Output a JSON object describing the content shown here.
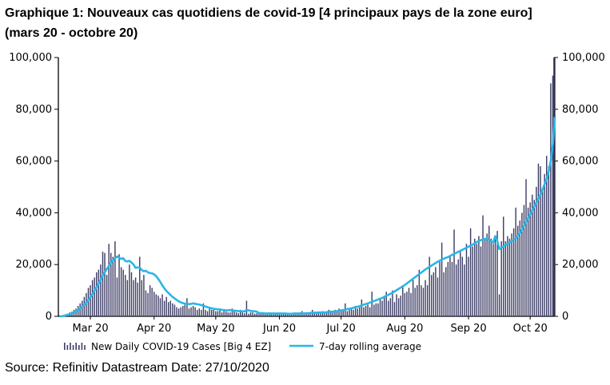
{
  "title_line1": "Graphique 1: Nouveaux cas quotidiens de covid-19 [4 principaux pays de la zone euro]",
  "title_line2": "(mars 20 - octobre 20)",
  "source": "Source: Refinitiv Datastream Date: 27/10/2020",
  "colors": {
    "bars": "#3d3d66",
    "line": "#29b6e8",
    "axis": "#000000"
  },
  "chart_data": {
    "type": "bar",
    "y_ticks": [
      "0",
      "20,000",
      "40,000",
      "60,000",
      "80,000",
      "100,000"
    ],
    "ylim": [
      0,
      100000
    ],
    "x_ticks": [
      {
        "label": "Mar 20",
        "day": 15
      },
      {
        "label": "Apr 20",
        "day": 46
      },
      {
        "label": "May 20",
        "day": 76
      },
      {
        "label": "Jun 20",
        "day": 107
      },
      {
        "label": "Jul 20",
        "day": 137
      },
      {
        "label": "Aug 20",
        "day": 168
      },
      {
        "label": "Sep 20",
        "day": 199
      },
      {
        "label": "Oct 20",
        "day": 229
      }
    ],
    "x_start_label": "2020-03-01",
    "series": [
      {
        "name": "New Daily COVID-19 Cases [Big 4 EZ]",
        "type": "bar",
        "values": [
          0,
          0,
          500,
          800,
          1000,
          1500,
          1800,
          2500,
          3000,
          4000,
          5000,
          6000,
          7500,
          9000,
          11000,
          12000,
          14000,
          15000,
          17000,
          18000,
          20000,
          25000,
          24500,
          16000,
          28000,
          24500,
          23000,
          29000,
          15000,
          24000,
          19000,
          18000,
          16000,
          14000,
          20000,
          17000,
          14000,
          15000,
          13000,
          23000,
          14000,
          16000,
          10000,
          9000,
          12000,
          11000,
          9500,
          8500,
          8000,
          7000,
          8500,
          6000,
          7500,
          5500,
          6000,
          5000,
          4500,
          3500,
          3000,
          3500,
          4000,
          4500,
          7000,
          3000,
          3500,
          4000,
          3500,
          2500,
          3000,
          2500,
          5000,
          2500,
          2000,
          3500,
          2500,
          2500,
          2000,
          2000,
          3000,
          1500,
          2000,
          1800,
          1500,
          1500,
          3000,
          2000,
          1500,
          1200,
          2500,
          1500,
          1200,
          6000,
          1000,
          1500,
          1500,
          1000,
          1200,
          1100,
          1000,
          1000,
          1200,
          1000,
          1500,
          1200,
          1000,
          1100,
          1000,
          900,
          1000,
          1000,
          900,
          1200,
          1000,
          1000,
          1100,
          1000,
          1200,
          1500,
          2000,
          1000,
          1500,
          1500,
          1200,
          2500,
          1000,
          1500,
          1200,
          1500,
          2000,
          1500,
          2000,
          2500,
          2000,
          1500,
          2500,
          2000,
          3000,
          2000,
          2500,
          5000,
          2000,
          2500,
          3000,
          2500,
          4000,
          3000,
          3500,
          6500,
          3500,
          4000,
          4500,
          3500,
          9500,
          4500,
          5000,
          5000,
          7000,
          6000,
          8000,
          9500,
          6000,
          7000,
          10000,
          5500,
          8500,
          7000,
          8000,
          12000,
          9000,
          9500,
          11000,
          9000,
          14000,
          11000,
          12000,
          18000,
          12000,
          11000,
          14000,
          12000,
          23000,
          16000,
          17000,
          19000,
          15000,
          21000,
          28500,
          17000,
          19000,
          21000,
          23000,
          21000,
          33500,
          20000,
          22000,
          25000,
          23000,
          20000,
          28000,
          23000,
          34000,
          27000,
          30000,
          28000,
          31000,
          27000,
          39000,
          30000,
          32000,
          35000,
          30000,
          28000,
          31000,
          33000,
          8500,
          29000,
          38500,
          29000,
          31000,
          30000,
          32000,
          34000,
          42000,
          35000,
          37000,
          40000,
          43000,
          53000,
          42000,
          44000,
          47000,
          45000,
          50000,
          59000,
          58000,
          49000,
          55000,
          62000,
          58000,
          90000,
          93000,
          100000
        ]
      },
      {
        "name": "7-day rolling average",
        "type": "line",
        "values": [
          0,
          0,
          200,
          400,
          600,
          800,
          1100,
          1500,
          1900,
          2400,
          3000,
          3700,
          4500,
          5300,
          6300,
          7400,
          8600,
          9900,
          11200,
          12600,
          14000,
          15600,
          17000,
          18300,
          19500,
          20600,
          21400,
          22400,
          23100,
          22600,
          22200,
          22400,
          21400,
          21200,
          21400,
          20800,
          20000,
          18700,
          18900,
          18800,
          17900,
          17400,
          17600,
          17000,
          16700,
          16600,
          16200,
          15500,
          14500,
          13300,
          12000,
          10800,
          9800,
          9000,
          8200,
          7500,
          6900,
          6300,
          5800,
          5400,
          5100,
          4900,
          4900,
          4700,
          4800,
          5000,
          4800,
          4700,
          4500,
          4300,
          4100,
          3800,
          3500,
          3300,
          3100,
          2900,
          2800,
          2700,
          2600,
          2500,
          2400,
          2300,
          2300,
          2400,
          2300,
          2200,
          2100,
          2000,
          2000,
          1900,
          1900,
          2400,
          2300,
          2100,
          2000,
          1900,
          1800,
          1300,
          1200,
          1200,
          1100,
          1100,
          1100,
          1100,
          1100,
          1100,
          1100,
          1100,
          1100,
          1100,
          1100,
          1000,
          1000,
          1000,
          1100,
          1100,
          1100,
          1100,
          1100,
          1100,
          1200,
          1200,
          1300,
          1400,
          1400,
          1400,
          1500,
          1500,
          1500,
          1500,
          1600,
          1700,
          1800,
          1800,
          1900,
          2000,
          2100,
          2300,
          2400,
          2600,
          2800,
          2900,
          3100,
          3300,
          3500,
          3700,
          3900,
          4200,
          4500,
          4700,
          5000,
          5300,
          5600,
          5900,
          6200,
          6500,
          6800,
          7100,
          7500,
          7900,
          8300,
          8700,
          9100,
          9600,
          10100,
          10600,
          11100,
          11600,
          12100,
          12700,
          13300,
          13900,
          14500,
          15100,
          15700,
          16300,
          16900,
          17500,
          18100,
          18600,
          19100,
          19600,
          20100,
          20600,
          21100,
          21500,
          21900,
          22300,
          22600,
          22900,
          23300,
          23700,
          24100,
          24500,
          24900,
          25300,
          25700,
          26100,
          26500,
          26900,
          27300,
          27700,
          28200,
          28700,
          29100,
          29400,
          29700,
          29900,
          30000,
          29500,
          29000,
          28500,
          31000,
          29000,
          26000,
          26500,
          27000,
          27500,
          28000,
          28500,
          29000,
          29500,
          30000,
          31000,
          32000,
          33500,
          35000,
          36500,
          38000,
          39500,
          41000,
          42500,
          44000,
          45500,
          47000,
          49000,
          51000,
          53000,
          56000,
          60000,
          66000,
          77000
        ]
      }
    ]
  }
}
